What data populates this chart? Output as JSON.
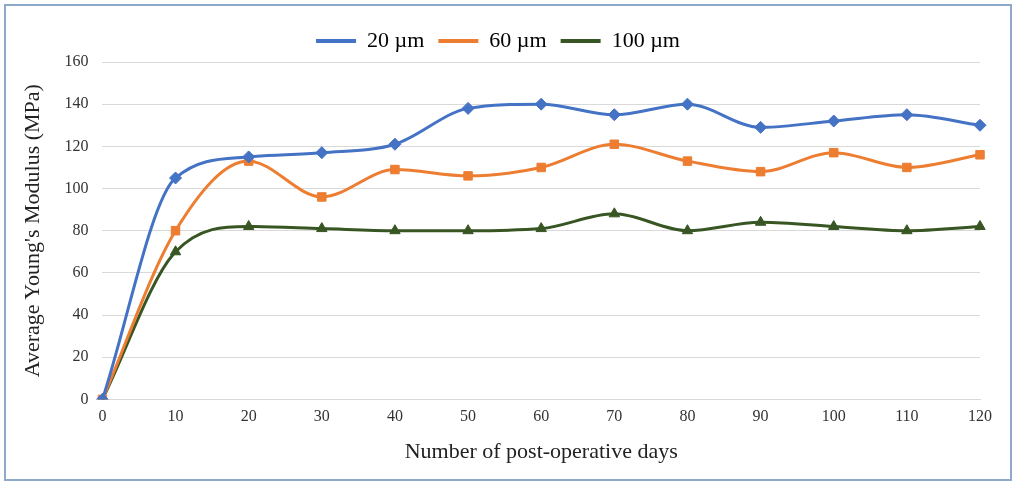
{
  "chart_data": {
    "type": "line",
    "xlabel": "Number of post-operative days",
    "ylabel": "Average Young's Modulus (MPa)",
    "categories": [
      "0",
      "10",
      "20",
      "30",
      "40",
      "50",
      "60",
      "70",
      "80",
      "90",
      "100",
      "110",
      "120"
    ],
    "series": [
      {
        "name": "20 µm",
        "color": "#4472c4",
        "marker": "diamond",
        "values": [
          0,
          105,
          115,
          117,
          121,
          138,
          140,
          135,
          140,
          129,
          132,
          135,
          130
        ]
      },
      {
        "name": "60 µm",
        "color": "#ed7d31",
        "marker": "square",
        "values": [
          0,
          80,
          113,
          96,
          109,
          106,
          110,
          121,
          113,
          108,
          117,
          110,
          116
        ]
      },
      {
        "name": "100 µm",
        "color": "#375623",
        "marker": "triangle",
        "values": [
          0,
          70,
          82,
          81,
          80,
          80,
          81,
          88,
          80,
          84,
          82,
          80,
          82
        ]
      }
    ],
    "ylim": [
      0,
      160
    ],
    "yticks": [
      0,
      20,
      40,
      60,
      80,
      100,
      120,
      140,
      160
    ],
    "grid": "y",
    "legend": "top",
    "line_style": "solid"
  }
}
